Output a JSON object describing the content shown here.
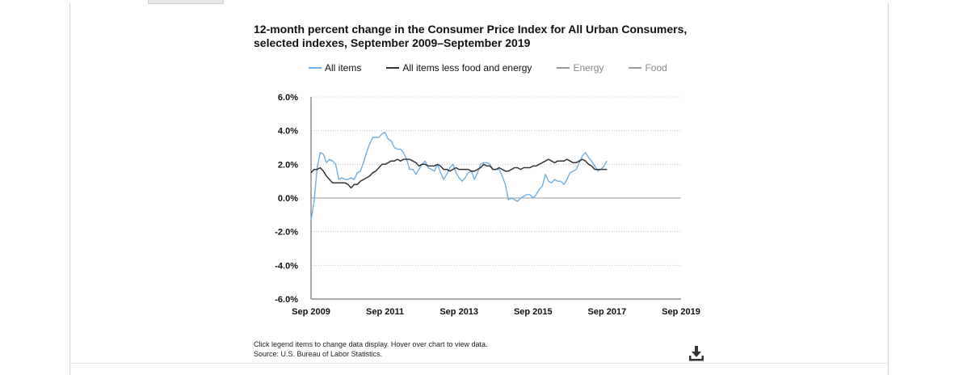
{
  "title_line1": "12-month percent change in the Consumer Price Index for All Urban Consumers,",
  "title_line2": "selected indexes, September 2009–September 2019",
  "legend": [
    {
      "label": "All items",
      "color": "#6fb0e3",
      "active": true
    },
    {
      "label": "All items less food and energy",
      "color": "#333333",
      "active": true
    },
    {
      "label": "Energy",
      "color": "#999999",
      "active": false
    },
    {
      "label": "Food",
      "color": "#999999",
      "active": false
    }
  ],
  "footnote_line1": "Click legend items to change data display. Hover over chart to view data.",
  "footnote_line2": "Source: U.S. Bureau of Labor Statistics.",
  "icons": {
    "download": "download-icon"
  },
  "chart_data": {
    "type": "line",
    "title": "12-month percent change in the Consumer Price Index for All Urban Consumers, selected indexes, September 2009–September 2019",
    "xlabel": "",
    "ylabel": "",
    "ylim": [
      -6.0,
      6.0
    ],
    "yticks": [
      "6.0%",
      "4.0%",
      "2.0%",
      "0.0%",
      "-2.0%",
      "-4.0%",
      "-6.0%"
    ],
    "ytick_values": [
      6,
      4,
      2,
      0,
      -2,
      -4,
      -6
    ],
    "xticks": [
      "Sep 2009",
      "Sep 2011",
      "Sep 2013",
      "Sep 2015",
      "Sep 2017",
      "Sep 2019"
    ],
    "xtick_values": [
      "2009-09",
      "2011-09",
      "2013-09",
      "2015-09",
      "2017-09",
      "2019-09"
    ],
    "x_range": [
      "2009-09",
      "2019-09"
    ],
    "grid": "horizontal dotted",
    "legend_position": "top",
    "series": [
      {
        "name": "All items",
        "color": "#6fb0e3",
        "x": [
          "2009-09",
          "2009-10",
          "2009-11",
          "2009-12",
          "2010-01",
          "2010-02",
          "2010-03",
          "2010-04",
          "2010-05",
          "2010-06",
          "2010-07",
          "2010-08",
          "2010-09",
          "2010-10",
          "2010-11",
          "2010-12",
          "2011-01",
          "2011-02",
          "2011-03",
          "2011-04",
          "2011-05",
          "2011-06",
          "2011-07",
          "2011-08",
          "2011-09",
          "2011-10",
          "2011-11",
          "2011-12",
          "2012-01",
          "2012-02",
          "2012-03",
          "2012-04",
          "2012-05",
          "2012-06",
          "2012-07",
          "2012-08",
          "2012-09",
          "2012-10",
          "2012-11",
          "2012-12",
          "2013-01",
          "2013-02",
          "2013-03",
          "2013-04",
          "2013-05",
          "2013-06",
          "2013-07",
          "2013-08",
          "2013-09",
          "2013-10",
          "2013-11",
          "2013-12",
          "2014-01",
          "2014-02",
          "2014-03",
          "2014-04",
          "2014-05",
          "2014-06",
          "2014-07",
          "2014-08",
          "2014-09",
          "2014-10",
          "2014-11",
          "2014-12",
          "2015-01",
          "2015-02",
          "2015-03",
          "2015-04",
          "2015-05",
          "2015-06",
          "2015-07",
          "2015-08",
          "2015-09",
          "2015-10",
          "2015-11",
          "2015-12",
          "2016-01",
          "2016-02",
          "2016-03",
          "2016-04",
          "2016-05",
          "2016-06",
          "2016-07",
          "2016-08",
          "2016-09",
          "2016-10",
          "2016-11",
          "2016-12",
          "2017-01",
          "2017-02",
          "2017-03",
          "2017-04",
          "2017-05",
          "2017-06",
          "2017-07",
          "2017-08",
          "2017-09"
        ],
        "values": [
          -1.3,
          -0.2,
          1.8,
          2.7,
          2.6,
          2.1,
          2.3,
          2.2,
          2.0,
          1.1,
          1.2,
          1.1,
          1.1,
          1.2,
          1.1,
          1.5,
          1.6,
          2.1,
          2.7,
          3.2,
          3.6,
          3.6,
          3.6,
          3.8,
          3.9,
          3.5,
          3.4,
          3.0,
          2.9,
          2.9,
          2.7,
          2.3,
          1.7,
          1.7,
          1.4,
          1.7,
          2.0,
          2.2,
          1.8,
          1.7,
          1.6,
          2.0,
          1.5,
          1.1,
          1.4,
          1.8,
          2.0,
          1.5,
          1.2,
          1.0,
          1.2,
          1.5,
          1.6,
          1.1,
          1.5,
          2.0,
          2.1,
          2.1,
          2.0,
          1.7,
          1.7,
          1.7,
          1.3,
          0.8,
          -0.1,
          0.0,
          -0.1,
          -0.2,
          0.0,
          0.1,
          0.2,
          0.2,
          0.0,
          0.2,
          0.5,
          0.7,
          1.4,
          1.0,
          0.9,
          1.1,
          1.0,
          1.0,
          0.8,
          1.1,
          1.5,
          1.6,
          1.7,
          2.1,
          2.5,
          2.7,
          2.4,
          2.2,
          1.9,
          1.6,
          1.7,
          1.9,
          2.2
        ]
      },
      {
        "name": "All items less food and energy",
        "color": "#333333",
        "x": [
          "2009-09",
          "2009-10",
          "2009-11",
          "2009-12",
          "2010-01",
          "2010-02",
          "2010-03",
          "2010-04",
          "2010-05",
          "2010-06",
          "2010-07",
          "2010-08",
          "2010-09",
          "2010-10",
          "2010-11",
          "2010-12",
          "2011-01",
          "2011-02",
          "2011-03",
          "2011-04",
          "2011-05",
          "2011-06",
          "2011-07",
          "2011-08",
          "2011-09",
          "2011-10",
          "2011-11",
          "2011-12",
          "2012-01",
          "2012-02",
          "2012-03",
          "2012-04",
          "2012-05",
          "2012-06",
          "2012-07",
          "2012-08",
          "2012-09",
          "2012-10",
          "2012-11",
          "2012-12",
          "2013-01",
          "2013-02",
          "2013-03",
          "2013-04",
          "2013-05",
          "2013-06",
          "2013-07",
          "2013-08",
          "2013-09",
          "2013-10",
          "2013-11",
          "2013-12",
          "2014-01",
          "2014-02",
          "2014-03",
          "2014-04",
          "2014-05",
          "2014-06",
          "2014-07",
          "2014-08",
          "2014-09",
          "2014-10",
          "2014-11",
          "2014-12",
          "2015-01",
          "2015-02",
          "2015-03",
          "2015-04",
          "2015-05",
          "2015-06",
          "2015-07",
          "2015-08",
          "2015-09",
          "2015-10",
          "2015-11",
          "2015-12",
          "2016-01",
          "2016-02",
          "2016-03",
          "2016-04",
          "2016-05",
          "2016-06",
          "2016-07",
          "2016-08",
          "2016-09",
          "2016-10",
          "2016-11",
          "2016-12",
          "2017-01",
          "2017-02",
          "2017-03",
          "2017-04",
          "2017-05",
          "2017-06",
          "2017-07",
          "2017-08",
          "2017-09"
        ],
        "values": [
          1.5,
          1.7,
          1.7,
          1.8,
          1.6,
          1.3,
          1.1,
          0.9,
          0.9,
          0.9,
          0.9,
          0.9,
          0.8,
          0.6,
          0.8,
          0.8,
          1.0,
          1.1,
          1.2,
          1.3,
          1.5,
          1.6,
          1.8,
          2.0,
          2.0,
          2.1,
          2.2,
          2.2,
          2.3,
          2.2,
          2.3,
          2.3,
          2.3,
          2.2,
          2.1,
          1.9,
          2.0,
          2.0,
          1.9,
          1.9,
          1.9,
          2.0,
          1.9,
          1.7,
          1.7,
          1.6,
          1.7,
          1.8,
          1.7,
          1.7,
          1.7,
          1.7,
          1.6,
          1.6,
          1.7,
          1.8,
          2.0,
          1.9,
          1.9,
          1.7,
          1.7,
          1.8,
          1.7,
          1.6,
          1.6,
          1.7,
          1.8,
          1.8,
          1.7,
          1.8,
          1.8,
          1.8,
          1.9,
          1.9,
          2.0,
          2.1,
          2.2,
          2.3,
          2.2,
          2.1,
          2.2,
          2.2,
          2.2,
          2.3,
          2.2,
          2.1,
          2.1,
          2.2,
          2.3,
          2.2,
          2.0,
          1.9,
          1.7,
          1.7,
          1.7,
          1.7,
          1.7
        ]
      }
    ]
  }
}
